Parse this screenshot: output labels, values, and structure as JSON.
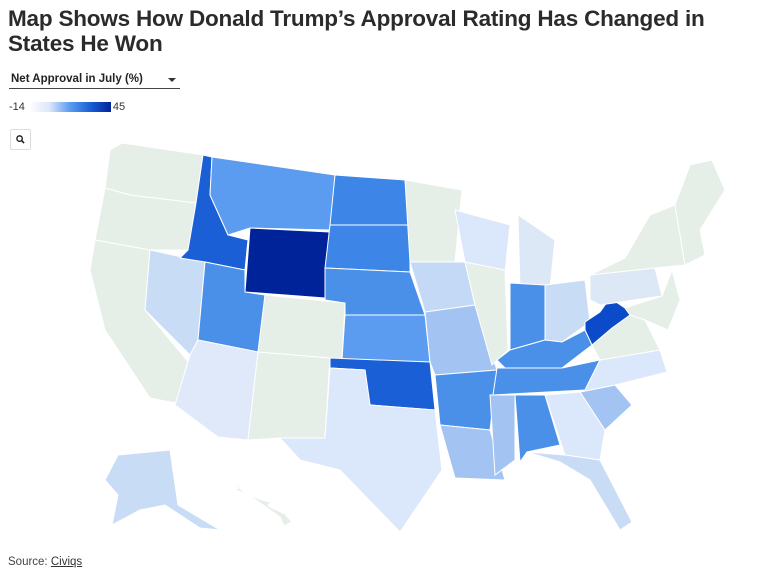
{
  "title": "Map Shows How Donald Trump’s Approval Rating Has Changed in States He Won",
  "dropdown": {
    "selected": "Net Approval in July (%)"
  },
  "legend": {
    "min": "-14",
    "max": "45",
    "min_color": "#ffffff",
    "max_color": "#00239a"
  },
  "zoom_button": {
    "icon": "search-icon"
  },
  "not_won_color": "#e6eee8",
  "states": [
    {
      "id": "WA",
      "fill": "#e6eee8"
    },
    {
      "id": "OR",
      "fill": "#e6eee8"
    },
    {
      "id": "CA",
      "fill": "#e6eee8"
    },
    {
      "id": "NV",
      "fill": "#c9dcf5"
    },
    {
      "id": "ID",
      "fill": "#1a5fd6"
    },
    {
      "id": "MT",
      "fill": "#5b9bf0"
    },
    {
      "id": "WY",
      "fill": "#00239a"
    },
    {
      "id": "UT",
      "fill": "#4a90e8"
    },
    {
      "id": "CO",
      "fill": "#e6eee8"
    },
    {
      "id": "AZ",
      "fill": "#dfe9fa"
    },
    {
      "id": "NM",
      "fill": "#e6eee8"
    },
    {
      "id": "ND",
      "fill": "#3d86e8"
    },
    {
      "id": "SD",
      "fill": "#3d86e8"
    },
    {
      "id": "NE",
      "fill": "#4a90e8"
    },
    {
      "id": "KS",
      "fill": "#5b9bf0"
    },
    {
      "id": "OK",
      "fill": "#1a5fd6"
    },
    {
      "id": "TX",
      "fill": "#dbe7fa"
    },
    {
      "id": "MN",
      "fill": "#e6eee8"
    },
    {
      "id": "IA",
      "fill": "#c4d9f5"
    },
    {
      "id": "MO",
      "fill": "#a3c4f2"
    },
    {
      "id": "AR",
      "fill": "#4a90e8"
    },
    {
      "id": "LA",
      "fill": "#a3c4f2"
    },
    {
      "id": "WI",
      "fill": "#dbe7fa"
    },
    {
      "id": "IL",
      "fill": "#e6eee8"
    },
    {
      "id": "MI",
      "fill": "#dde8f7"
    },
    {
      "id": "IN",
      "fill": "#4a90e8"
    },
    {
      "id": "OH",
      "fill": "#c9dcf5"
    },
    {
      "id": "KY",
      "fill": "#4a90e8"
    },
    {
      "id": "TN",
      "fill": "#4a90e8"
    },
    {
      "id": "MS",
      "fill": "#a3c4f2"
    },
    {
      "id": "AL",
      "fill": "#4a90e8"
    },
    {
      "id": "GA",
      "fill": "#dbe7fa"
    },
    {
      "id": "FL",
      "fill": "#c9dcf5"
    },
    {
      "id": "SC",
      "fill": "#a3c4f2"
    },
    {
      "id": "NC",
      "fill": "#dbe7fa"
    },
    {
      "id": "VA",
      "fill": "#e6eee8"
    },
    {
      "id": "WV",
      "fill": "#0b4bc9"
    },
    {
      "id": "PA",
      "fill": "#dde8f7"
    },
    {
      "id": "NY",
      "fill": "#e6eee8"
    },
    {
      "id": "NE-US",
      "fill": "#e6eee8"
    },
    {
      "id": "MD-DE-NJ",
      "fill": "#e6eee8"
    },
    {
      "id": "AK",
      "fill": "#c9dcf5"
    },
    {
      "id": "HI",
      "fill": "#e6eee8"
    }
  ],
  "source": {
    "label": "Source: ",
    "link": "Civiqs"
  }
}
